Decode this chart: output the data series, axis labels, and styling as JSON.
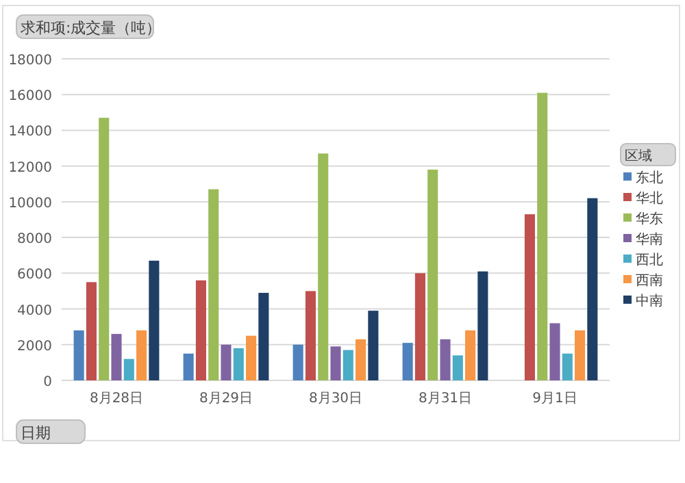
{
  "chart_data": {
    "type": "bar",
    "title": "求和项:成交量（吨）",
    "xlabel": "日期",
    "legend_title": "区域",
    "categories": [
      "8月28日",
      "8月29日",
      "8月30日",
      "8月31日",
      "9月1日"
    ],
    "series": [
      {
        "name": "东北",
        "color": "#4f81bd",
        "values": [
          2800,
          1500,
          2000,
          2100,
          null
        ]
      },
      {
        "name": "华北",
        "color": "#c0504d",
        "values": [
          5500,
          5600,
          5000,
          6000,
          9300
        ]
      },
      {
        "name": "华东",
        "color": "#9bbb59",
        "values": [
          14700,
          10700,
          12700,
          11800,
          16100
        ]
      },
      {
        "name": "华南",
        "color": "#8064a2",
        "values": [
          2600,
          2000,
          1900,
          2300,
          3200
        ]
      },
      {
        "name": "西北",
        "color": "#4bacc6",
        "values": [
          1200,
          1800,
          1700,
          1400,
          1500
        ]
      },
      {
        "name": "西南",
        "color": "#f79646",
        "values": [
          2800,
          2500,
          2300,
          2800,
          2800
        ]
      },
      {
        "name": "中南",
        "color": "#1f3f66",
        "values": [
          6700,
          4900,
          3900,
          6100,
          10200
        ]
      }
    ],
    "ylim": [
      0,
      18000
    ],
    "yticks": [
      0,
      2000,
      4000,
      6000,
      8000,
      10000,
      12000,
      14000,
      16000,
      18000
    ],
    "grid": "y",
    "legend": "right"
  }
}
